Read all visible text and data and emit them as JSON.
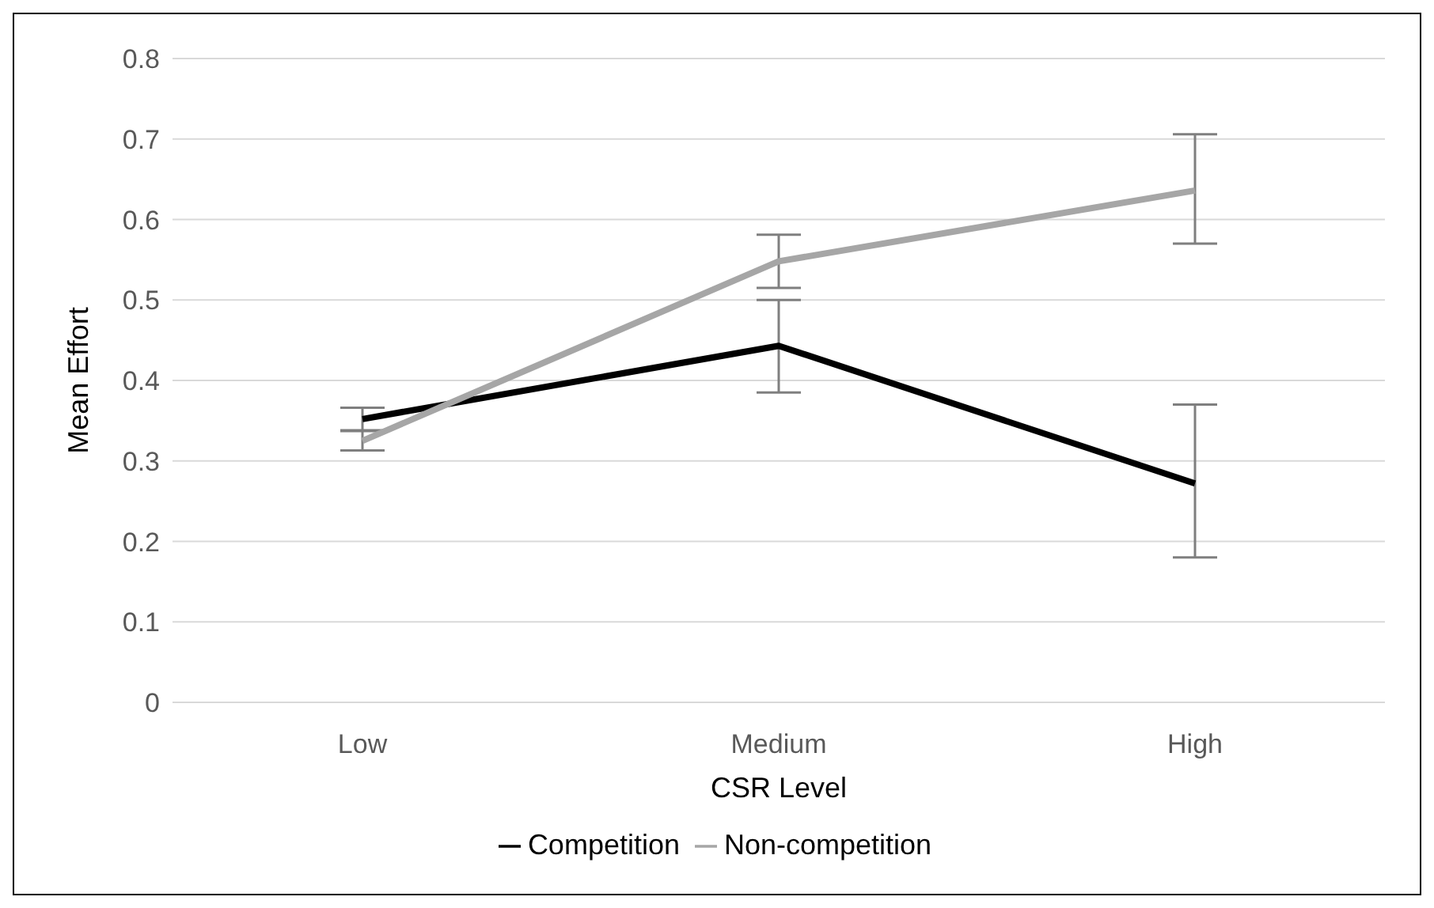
{
  "chart_data": {
    "type": "line",
    "xlabel": "CSR Level",
    "ylabel": "Mean Effort",
    "categories": [
      "Low",
      "Medium",
      "High"
    ],
    "series": [
      {
        "name": "Competition",
        "color": "#000000",
        "values": [
          0.352,
          0.443,
          0.272
        ],
        "errors": [
          [
            0.338,
            0.366
          ],
          [
            0.385,
            0.5
          ],
          [
            0.18,
            0.37
          ]
        ]
      },
      {
        "name": "Non-competition",
        "color": "#a6a6a6",
        "values": [
          0.325,
          0.548,
          0.636
        ],
        "errors": [
          [
            0.313,
            0.337
          ],
          [
            0.515,
            0.581
          ],
          [
            0.57,
            0.706
          ]
        ]
      }
    ],
    "ylim": [
      0,
      0.8
    ],
    "yticks": [
      0,
      0.1,
      0.2,
      0.3,
      0.4,
      0.5,
      0.6,
      0.7,
      0.8
    ],
    "grid": "y",
    "legend": "bottom",
    "marker": "none",
    "line_style": "solid"
  }
}
